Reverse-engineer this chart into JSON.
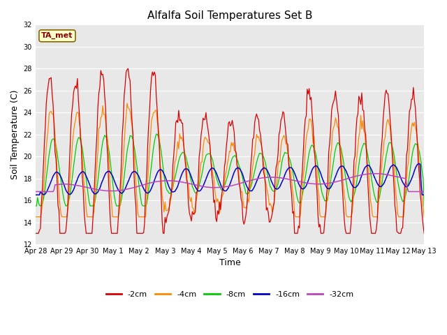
{
  "title": "Alfalfa Soil Temperatures Set B",
  "xlabel": "Time",
  "ylabel": "Soil Temperature (C)",
  "ylim": [
    12,
    32
  ],
  "yticks": [
    12,
    14,
    16,
    18,
    20,
    22,
    24,
    26,
    28,
    30,
    32
  ],
  "plot_bg": "#e8e8e8",
  "series_colors": {
    "-2cm": "#dd0000",
    "-4cm": "#ff8800",
    "-8cm": "#00cc00",
    "-16cm": "#0000cc",
    "-32cm": "#bb44bb"
  },
  "legend_label": "TA_met",
  "x_labels": [
    "Apr 28",
    "Apr 29",
    "Apr 30",
    "May 1",
    "May 2",
    "May 3",
    "May 4",
    "May 5",
    "May 6",
    "May 7",
    "May 8",
    "May 9",
    "May 10",
    "May 11",
    "May 12",
    "May 13"
  ],
  "figsize": [
    6.4,
    4.8
  ],
  "dpi": 100
}
